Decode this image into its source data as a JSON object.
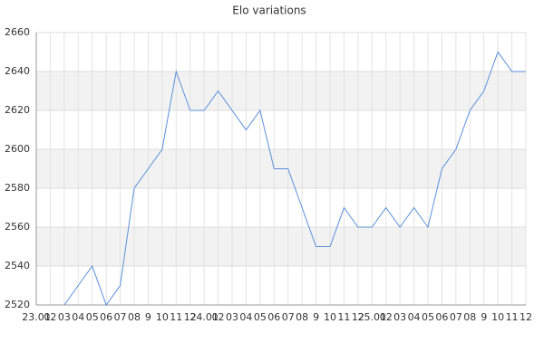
{
  "chart_data": {
    "type": "line",
    "title": "Elo variations",
    "categories": [
      "23.01",
      "02",
      "03",
      "04",
      "05",
      "06",
      "07",
      "08",
      "9",
      "10",
      "11",
      "12",
      "24.01",
      "02",
      "03",
      "04",
      "05",
      "06",
      "07",
      "08",
      "9",
      "10",
      "11",
      "12",
      "25.01",
      "02",
      "03",
      "04",
      "05",
      "06",
      "07",
      "08",
      "9",
      "10",
      "11",
      "12"
    ],
    "series": [
      {
        "name": "Elo",
        "color": "#5b8fd9",
        "values": [
          null,
          null,
          2520,
          2530,
          2540,
          2520,
          2530,
          2580,
          2590,
          2600,
          2640,
          2620,
          2620,
          2630,
          2620,
          2610,
          2620,
          2590,
          2590,
          2570,
          2550,
          2550,
          2570,
          2560,
          2560,
          2570,
          2560,
          2570,
          2560,
          2590,
          2600,
          2620,
          2630,
          2650,
          2640,
          2640
        ]
      }
    ],
    "ylim": [
      2520,
      2660
    ],
    "yticks": [
      2520,
      2540,
      2560,
      2580,
      2600,
      2620,
      2640,
      2660
    ],
    "grid": true,
    "bands": true
  }
}
